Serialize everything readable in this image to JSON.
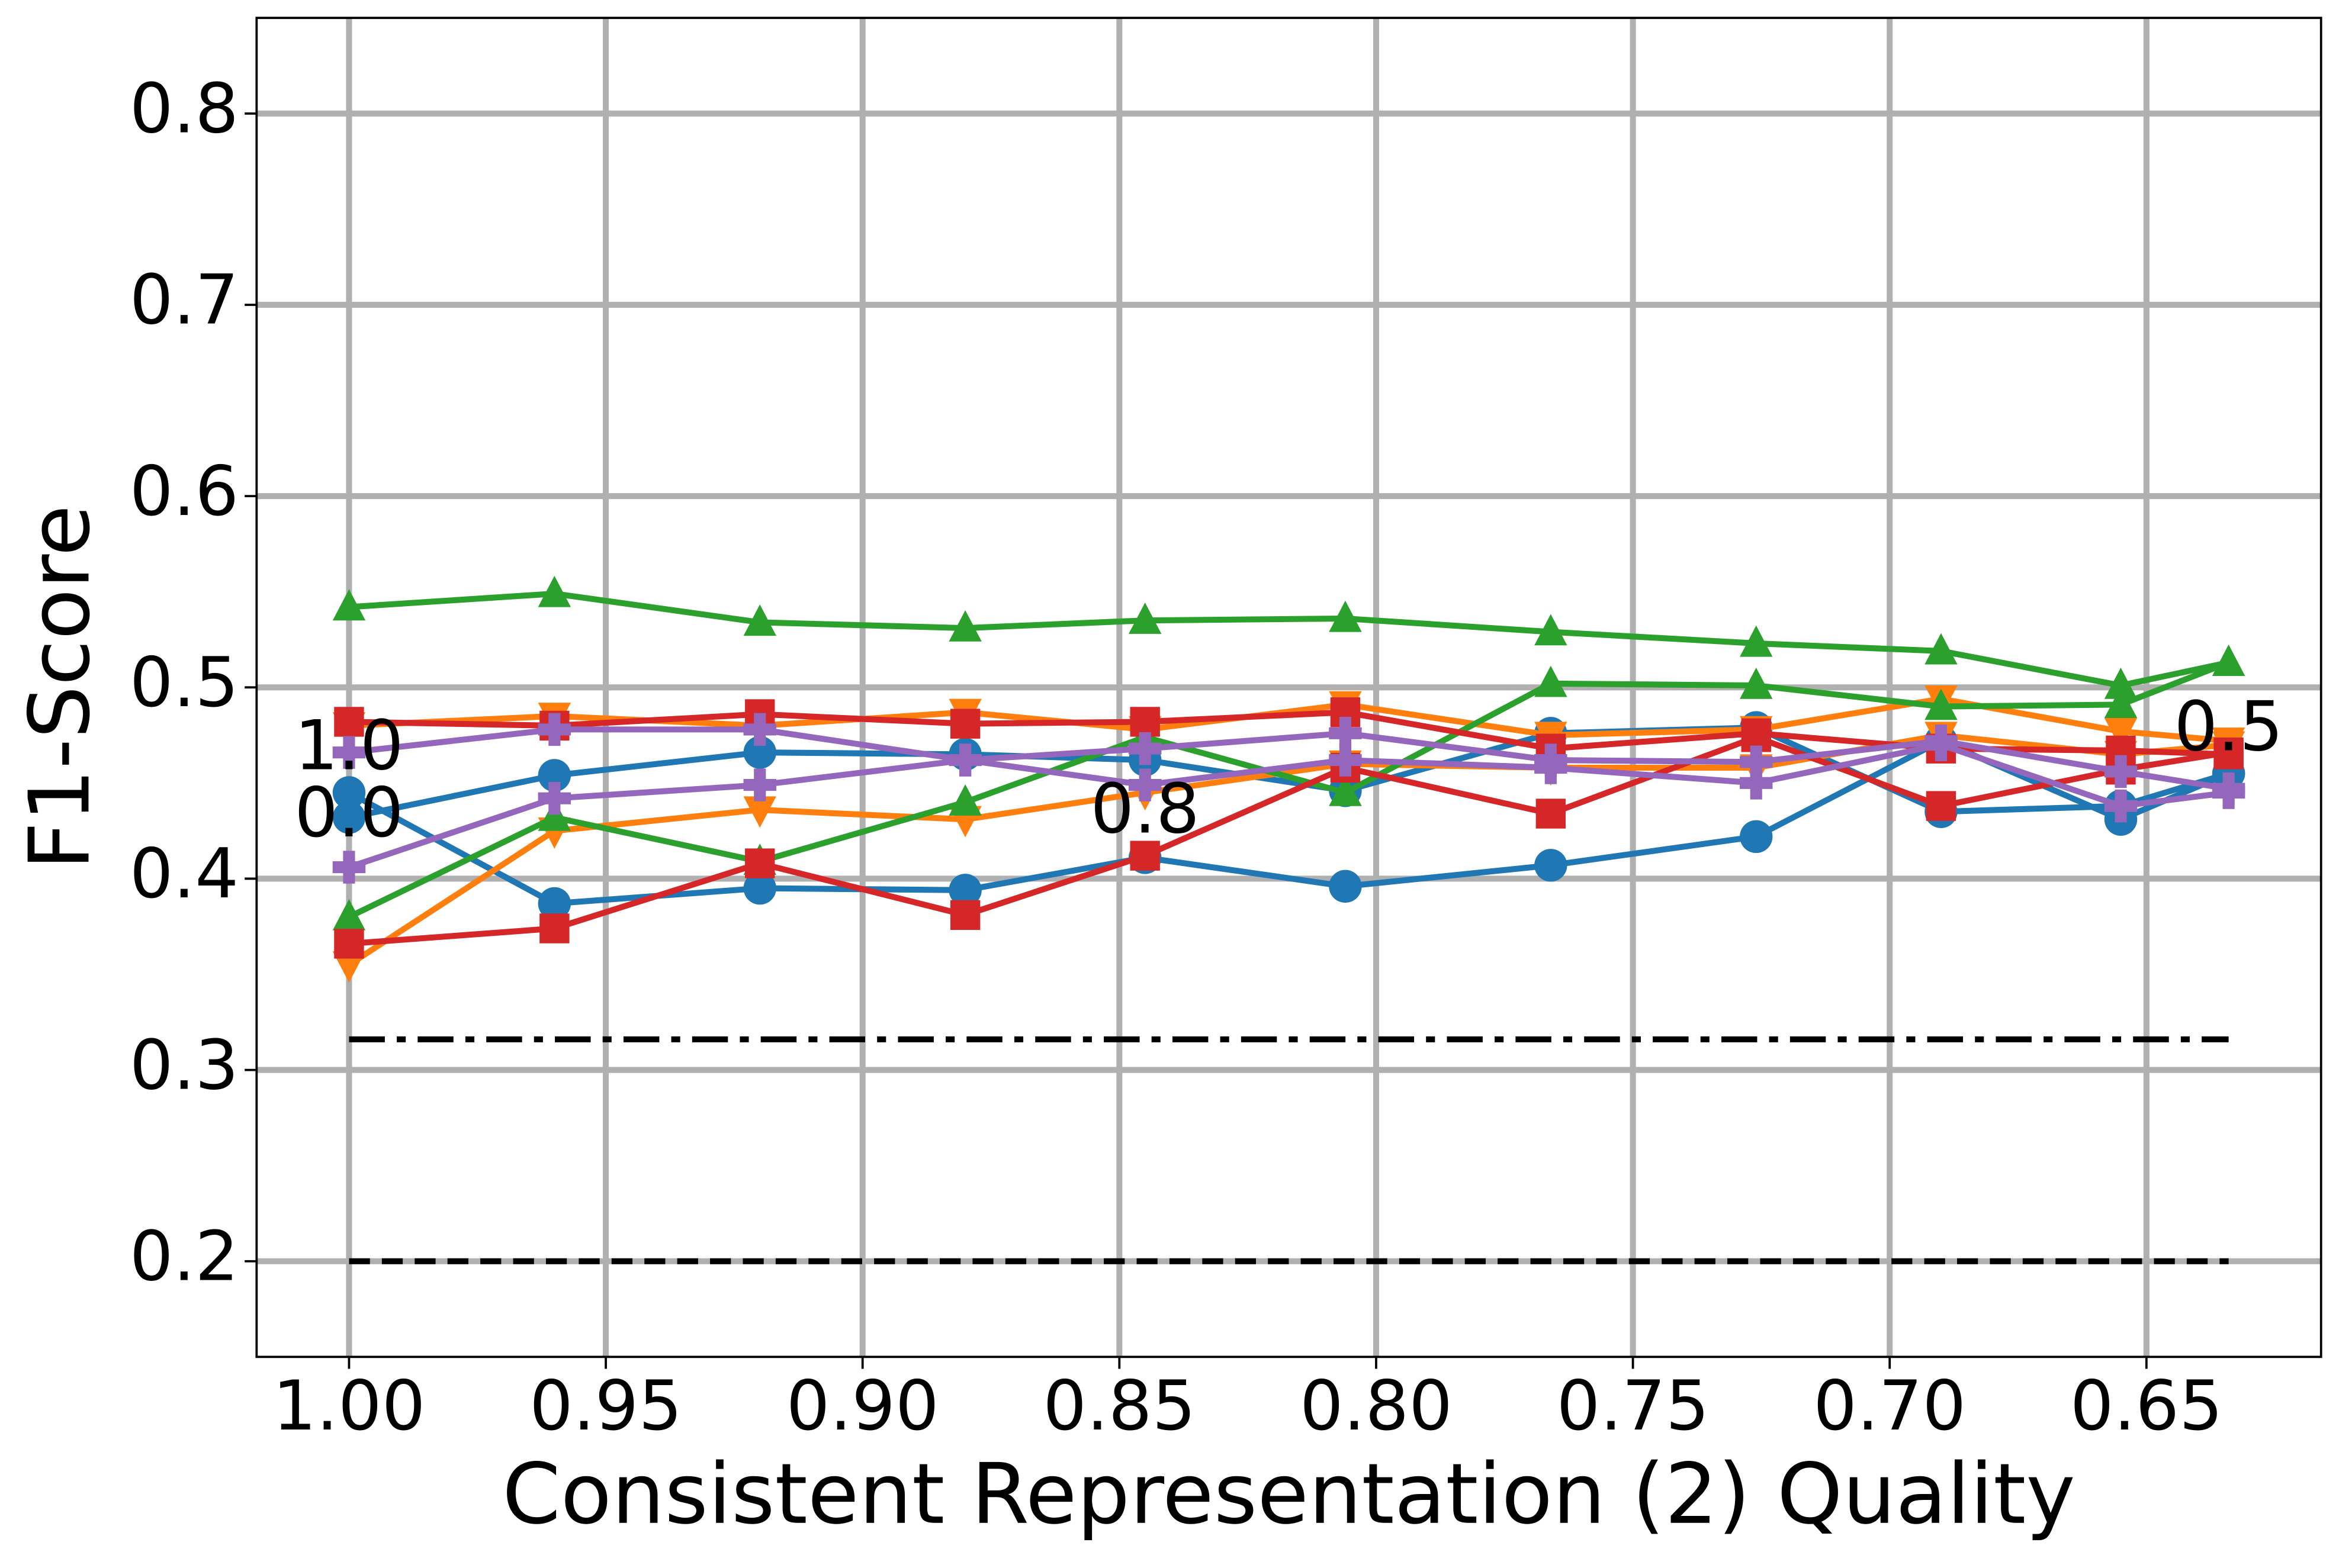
{
  "chart_data": {
    "type": "line",
    "xlabel": "Consistent Representation (2) Quality",
    "ylabel": "F1-Score",
    "x": [
      1.0,
      0.96,
      0.92,
      0.88,
      0.845,
      0.806,
      0.766,
      0.726,
      0.69,
      0.655,
      0.634
    ],
    "xlim": [
      1.018,
      0.616
    ],
    "xticks": [
      {
        "value": 1.0,
        "label": "1.00"
      },
      0.95,
      {
        "value": 0.9,
        "label": "0.90"
      },
      0.85,
      {
        "value": 0.8,
        "label": "0.80"
      },
      0.75,
      {
        "value": 0.7,
        "label": "0.70"
      },
      0.65
    ],
    "ylim": [
      0.15,
      0.85
    ],
    "yticks": [
      0.2,
      0.3,
      0.4,
      0.5,
      0.6,
      0.7,
      0.8
    ],
    "grid": true,
    "series": [
      {
        "color": "#1f77b4",
        "marker": "circle",
        "values": [
          0.432,
          0.454,
          0.466,
          0.465,
          0.462,
          0.446,
          0.476,
          0.479,
          0.435,
          0.438,
          0.455
        ]
      },
      {
        "color": "#1f77b4",
        "marker": "circle",
        "values": [
          0.445,
          0.387,
          0.395,
          0.394,
          0.411,
          0.396,
          0.407,
          0.422,
          0.472,
          0.431,
          0.455
        ]
      },
      {
        "color": "#ff7f0e",
        "marker": "triangle-down",
        "values": [
          0.48,
          0.485,
          0.48,
          0.487,
          0.478,
          0.491,
          0.475,
          0.478,
          0.494,
          0.477,
          0.472
        ]
      },
      {
        "color": "#ff7f0e",
        "marker": "triangle-down",
        "values": [
          0.355,
          0.425,
          0.436,
          0.431,
          0.445,
          0.46,
          0.458,
          0.458,
          0.475,
          0.465,
          0.47
        ]
      },
      {
        "color": "#2ca02c",
        "marker": "triangle-up",
        "values": [
          0.542,
          0.549,
          0.534,
          0.531,
          0.535,
          0.536,
          0.529,
          0.523,
          0.519,
          0.501,
          0.513
        ]
      },
      {
        "color": "#2ca02c",
        "marker": "triangle-up",
        "values": [
          0.38,
          0.432,
          0.409,
          0.44,
          0.474,
          0.445,
          0.502,
          0.501,
          0.49,
          0.491,
          0.513
        ]
      },
      {
        "color": "#d62728",
        "marker": "square",
        "values": [
          0.482,
          0.48,
          0.486,
          0.481,
          0.482,
          0.487,
          0.468,
          0.476,
          0.468,
          0.467,
          0.465
        ]
      },
      {
        "color": "#d62728",
        "marker": "square",
        "values": [
          0.366,
          0.374,
          0.408,
          0.381,
          0.412,
          0.458,
          0.434,
          0.474,
          0.438,
          0.457,
          0.466
        ]
      },
      {
        "color": "#9467bd",
        "marker": "plus",
        "values": [
          0.466,
          0.478,
          0.478,
          0.462,
          0.468,
          0.476,
          0.462,
          0.461,
          0.472,
          0.456,
          0.447
        ]
      },
      {
        "color": "#9467bd",
        "marker": "plus",
        "values": [
          0.406,
          0.442,
          0.449,
          0.462,
          0.449,
          0.462,
          0.458,
          0.45,
          0.47,
          0.438,
          0.445
        ]
      }
    ],
    "hlines": [
      {
        "y": 0.316,
        "style": "dashdot",
        "color": "#000000"
      },
      {
        "y": 0.2,
        "style": "dashed",
        "color": "#000000"
      }
    ],
    "annotations": [
      {
        "text": "1.0",
        "x": 1.0,
        "y": 0.467
      },
      {
        "text": "0.0",
        "x": 1.0,
        "y": 0.432
      },
      {
        "text": "0.8",
        "x": 0.845,
        "y": 0.434
      },
      {
        "text": "0.5",
        "x": 0.634,
        "y": 0.477
      }
    ]
  }
}
